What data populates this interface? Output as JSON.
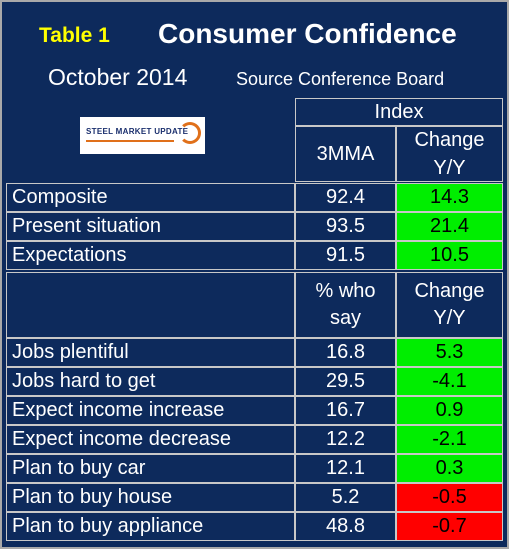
{
  "header": {
    "table_label": "Table 1",
    "title": "Consumer Confidence",
    "date": "October 2014",
    "source": "Source Conference Board",
    "logo_text": "STEEL MARKET UPDATE"
  },
  "columns": {
    "index_group": "Index",
    "col1": "3MMA",
    "col2_line1": "Change",
    "col2_line2": "Y/Y",
    "pct_line1": "% who",
    "pct_line2": "say"
  },
  "section1": [
    {
      "label": "Composite",
      "value": "92.4",
      "change": "14.3",
      "status": "positive"
    },
    {
      "label": "Present situation",
      "value": "93.5",
      "change": "21.4",
      "status": "positive"
    },
    {
      "label": "Expectations",
      "value": "91.5",
      "change": "10.5",
      "status": "positive"
    }
  ],
  "section2": [
    {
      "label": "Jobs plentiful",
      "value": "16.8",
      "change": "5.3",
      "status": "positive"
    },
    {
      "label": "Jobs hard to get",
      "value": "29.5",
      "change": "-4.1",
      "status": "positive"
    },
    {
      "label": "Expect income increase",
      "value": "16.7",
      "change": "0.9",
      "status": "positive"
    },
    {
      "label": "Expect income decrease",
      "value": "12.2",
      "change": "-2.1",
      "status": "positive"
    },
    {
      "label": "Plan to buy car",
      "value": "12.1",
      "change": "0.3",
      "status": "positive"
    },
    {
      "label": "Plan to buy house",
      "value": "5.2",
      "change": "-0.5",
      "status": "negative"
    },
    {
      "label": "Plan to buy appliance",
      "value": "48.8",
      "change": "-0.7",
      "status": "negative"
    }
  ],
  "colors": {
    "background": "#0d2a5c",
    "positive": "#00ee00",
    "negative": "#ff0000",
    "label_accent": "#ffff00"
  }
}
